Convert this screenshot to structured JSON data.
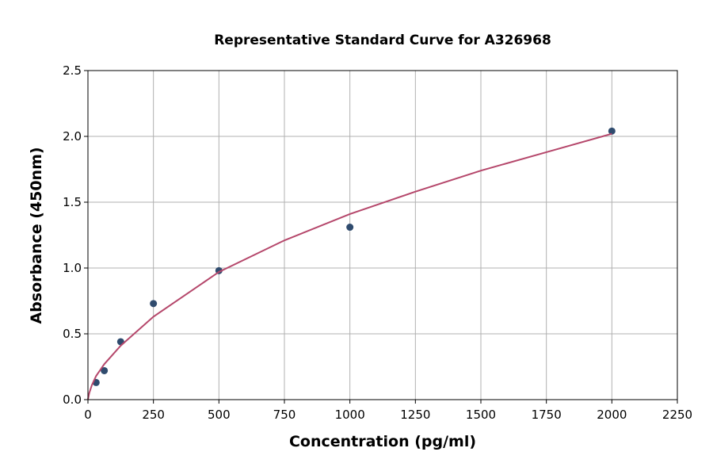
{
  "chart_data": {
    "type": "scatter",
    "title": "Representative Standard Curve for A326968",
    "x_label": "Concentration (pg/ml)",
    "y_label": "Absorbance (450nm)",
    "xlim": [
      0,
      2250
    ],
    "ylim": [
      0,
      2.5
    ],
    "xticks": [
      0,
      250,
      500,
      750,
      1000,
      1250,
      1500,
      1750,
      2000,
      2250
    ],
    "yticks": [
      {
        "value": 0,
        "label": "0.0"
      },
      0.5,
      {
        "value": 1,
        "label": "1.0"
      },
      1.5,
      {
        "value": 2,
        "label": "2.0"
      },
      2.5
    ],
    "grid": true,
    "series": [
      {
        "mode": "markers",
        "color": "#2f4b6e",
        "x": [
          31.25,
          62.5,
          125,
          250,
          500,
          1000,
          2000
        ],
        "values": [
          0.13,
          0.22,
          0.44,
          0.73,
          0.98,
          1.31,
          2.04
        ]
      },
      {
        "mode": "line",
        "color": "#b5476b",
        "x": [
          0,
          5,
          15,
          31.25,
          62.5,
          125,
          250,
          500,
          750,
          1000,
          1250,
          1500,
          1750,
          2000
        ],
        "values": [
          0.0,
          0.05,
          0.11,
          0.18,
          0.27,
          0.41,
          0.63,
          0.97,
          1.21,
          1.41,
          1.58,
          1.74,
          1.88,
          2.02
        ]
      }
    ]
  }
}
